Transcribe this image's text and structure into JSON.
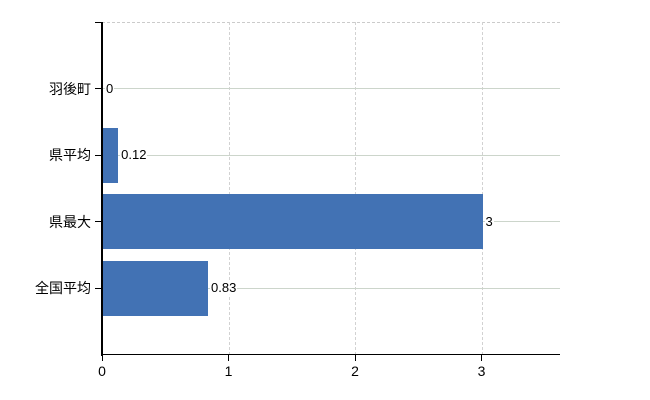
{
  "chart_data": {
    "type": "bar",
    "orientation": "horizontal",
    "title": "",
    "xlabel": "",
    "ylabel": "",
    "categories": [
      "羽後町",
      "県平均",
      "県最大",
      "全国平均"
    ],
    "values": [
      0,
      0.12,
      3,
      0.83
    ],
    "value_labels": [
      "0",
      "0.12",
      "3",
      "0.83"
    ],
    "x_ticks": [
      0,
      1,
      2,
      3
    ],
    "x_tick_labels": [
      "0",
      "1",
      "2",
      "3"
    ],
    "xlim": [
      0,
      3.62
    ],
    "grid": true,
    "legend": null,
    "bar_color": "#4272b4"
  },
  "colors": {
    "bar": "#4272b4",
    "axis": "#000000",
    "horizontal_gridline": "#ccd5cb",
    "vertical_gridline": "#d2d2d2",
    "top_border": "#cbcbcb",
    "background": "#ffffff",
    "text": "#000000"
  }
}
